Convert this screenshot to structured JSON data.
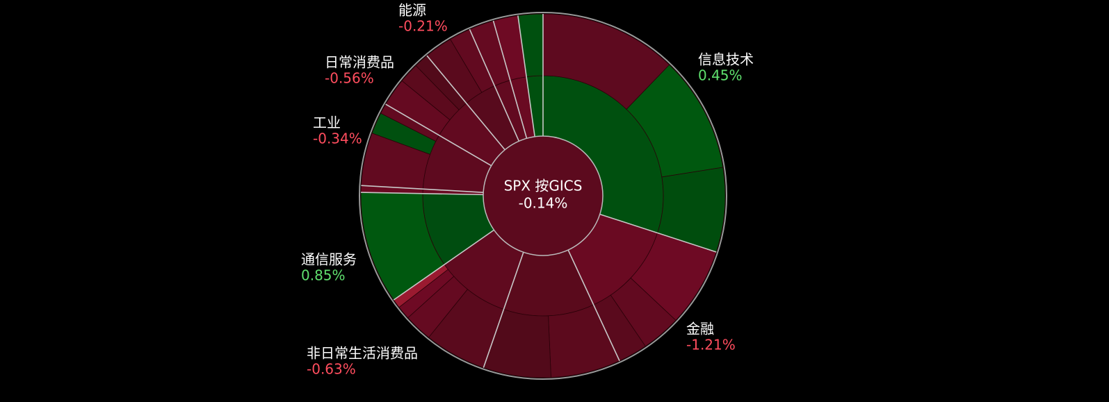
{
  "chart_data": {
    "type": "sunburst",
    "center_title": "SPX 按GICS",
    "center_value": -0.14,
    "center_value_label": "-0.14%",
    "center_color": "#5c0a1e",
    "sectors": [
      {
        "name": "信息技术",
        "weight": 30.0,
        "change": 0.45,
        "change_label": "0.45%",
        "color": "#00500f",
        "children": [
          {
            "value": 12.2,
            "color": "#5e0a1f"
          },
          {
            "value": 10.3,
            "color": "#00580f"
          },
          {
            "value": 7.5,
            "color": "#004d0d"
          }
        ]
      },
      {
        "name": "金融",
        "weight": 13.1,
        "change": -1.21,
        "change_label": "-1.21%",
        "color": "#6a0a22",
        "children": [
          {
            "value": 7.0,
            "color": "#6e0a24"
          },
          {
            "value": 3.5,
            "color": "#620a20"
          },
          {
            "value": 2.6,
            "color": "#5a0a1d"
          }
        ]
      },
      {
        "name": null,
        "weight": 12.2,
        "change": null,
        "change_label": null,
        "color": "#5a0a1c",
        "children": [
          {
            "value": 6.2,
            "color": "#5c0a1d"
          },
          {
            "value": 6.0,
            "color": "#520a1a"
          }
        ]
      },
      {
        "name": "非日常生活消费品",
        "weight": 10.0,
        "change": -0.63,
        "change_label": "-0.63%",
        "color": "#600a1f",
        "children": [
          {
            "value": 5.5,
            "color": "#5a0a1d"
          },
          {
            "value": 2.5,
            "color": "#650a21"
          },
          {
            "value": 1.2,
            "color": "#6e0a24"
          },
          {
            "value": 0.8,
            "color": "#9a1a30"
          }
        ]
      },
      {
        "name": "通信服务",
        "weight": 10.0,
        "change": 0.85,
        "change_label": "0.85%",
        "color": "#004d10",
        "children": [
          {
            "value": 10.0,
            "color": "#00580f"
          }
        ]
      },
      {
        "name": null,
        "weight": 0.6,
        "change": null,
        "change_label": null,
        "color": "#6a0a22",
        "children": [
          {
            "value": 0.6,
            "color": "#6a0a22"
          }
        ]
      },
      {
        "name": "工业",
        "weight": 7.5,
        "change": -0.34,
        "change_label": "-0.34%",
        "color": "#5e0a1f",
        "children": [
          {
            "value": 4.7,
            "color": "#620a20"
          },
          {
            "value": 1.9,
            "color": "#00500f"
          },
          {
            "value": 0.9,
            "color": "#620a20"
          }
        ]
      },
      {
        "name": "日常消费品",
        "weight": 5.6,
        "change": -0.56,
        "change_label": "-0.56%",
        "color": "#620a20",
        "children": [
          {
            "value": 2.5,
            "color": "#650a21"
          },
          {
            "value": 1.8,
            "color": "#5c0a1d"
          },
          {
            "value": 1.3,
            "color": "#520a1a"
          }
        ]
      },
      {
        "name": "能源",
        "weight": 4.4,
        "change": -0.21,
        "change_label": "-0.21%",
        "color": "#580a1d",
        "children": [
          {
            "value": 2.5,
            "color": "#5a0a1d"
          },
          {
            "value": 1.9,
            "color": "#620a20"
          }
        ]
      },
      {
        "name": null,
        "weight": 2.2,
        "change": null,
        "change_label": null,
        "color": "#620a20",
        "children": [
          {
            "value": 2.2,
            "color": "#650a21"
          }
        ]
      },
      {
        "name": null,
        "weight": 2.2,
        "change": null,
        "change_label": null,
        "color": "#6a0a22",
        "children": [
          {
            "value": 2.2,
            "color": "#6e0a24"
          }
        ]
      },
      {
        "name": null,
        "weight": 2.2,
        "change": null,
        "change_label": null,
        "color": "#00500f",
        "children": [
          {
            "value": 2.2,
            "color": "#00500f"
          }
        ]
      }
    ]
  }
}
